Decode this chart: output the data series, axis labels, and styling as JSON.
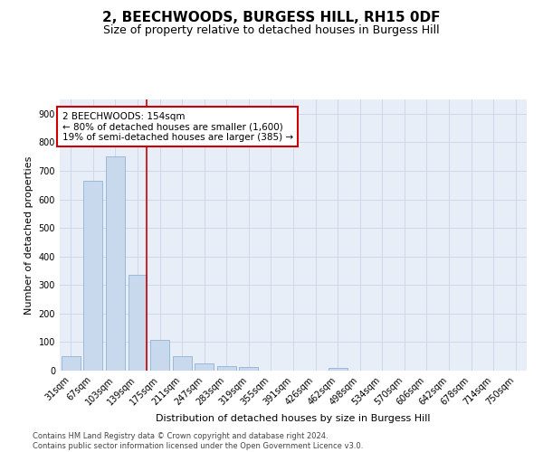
{
  "title1": "2, BEECHWOODS, BURGESS HILL, RH15 0DF",
  "title2": "Size of property relative to detached houses in Burgess Hill",
  "xlabel": "Distribution of detached houses by size in Burgess Hill",
  "ylabel": "Number of detached properties",
  "categories": [
    "31sqm",
    "67sqm",
    "103sqm",
    "139sqm",
    "175sqm",
    "211sqm",
    "247sqm",
    "283sqm",
    "319sqm",
    "355sqm",
    "391sqm",
    "426sqm",
    "462sqm",
    "498sqm",
    "534sqm",
    "570sqm",
    "606sqm",
    "642sqm",
    "678sqm",
    "714sqm",
    "750sqm"
  ],
  "values": [
    50,
    665,
    750,
    335,
    107,
    50,
    25,
    17,
    12,
    0,
    0,
    0,
    9,
    0,
    0,
    0,
    0,
    0,
    0,
    0,
    0
  ],
  "bar_color": "#c9d9ed",
  "bar_edge_color": "#8eb4d4",
  "vline_color": "#cc0000",
  "vline_pos": 3.417,
  "annotation_text": "2 BEECHWOODS: 154sqm\n← 80% of detached houses are smaller (1,600)\n19% of semi-detached houses are larger (385) →",
  "annotation_box_color": "#cc0000",
  "ylim": [
    0,
    950
  ],
  "yticks": [
    0,
    100,
    200,
    300,
    400,
    500,
    600,
    700,
    800,
    900
  ],
  "grid_color": "#c8d4e8",
  "background_color": "#e8eef8",
  "footer": "Contains HM Land Registry data © Crown copyright and database right 2024.\nContains public sector information licensed under the Open Government Licence v3.0.",
  "title_fontsize": 11,
  "subtitle_fontsize": 9,
  "annot_fontsize": 7.5,
  "axis_label_fontsize": 8,
  "tick_fontsize": 7,
  "footer_fontsize": 6
}
